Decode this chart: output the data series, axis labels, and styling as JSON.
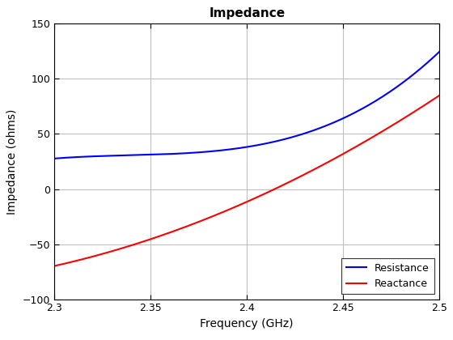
{
  "title": "Impedance",
  "xlabel": "Frequency (GHz)",
  "ylabel": "Impedance (ohms)",
  "xlim": [
    2.3,
    2.5
  ],
  "ylim": [
    -100,
    150
  ],
  "xticks": [
    2.3,
    2.35,
    2.4,
    2.45,
    2.5
  ],
  "xtick_labels": [
    "2.3",
    "2.35",
    "2.4",
    "2.45",
    "2.5"
  ],
  "yticks": [
    -100,
    -50,
    0,
    50,
    100,
    150
  ],
  "resistance_color": "#0000FF",
  "reactance_color": "#FF0000",
  "resistance_label": "Resistance",
  "reactance_label": "Reactance",
  "background_color": "#FFFFFF",
  "grid_color": "#C0C0C0",
  "title_fontsize": 11,
  "axis_label_fontsize": 10,
  "tick_fontsize": 9,
  "line_width": 1.5,
  "resistance_pts_t": [
    0.0,
    0.05,
    0.1,
    0.15,
    0.2
  ],
  "resistance_pts_R": [
    28,
    30,
    40,
    63,
    125
  ],
  "reactance_pts_t": [
    0.0,
    0.05,
    0.1,
    0.15,
    0.2
  ],
  "reactance_pts_X": [
    -70,
    -45,
    -12,
    32,
    85
  ]
}
